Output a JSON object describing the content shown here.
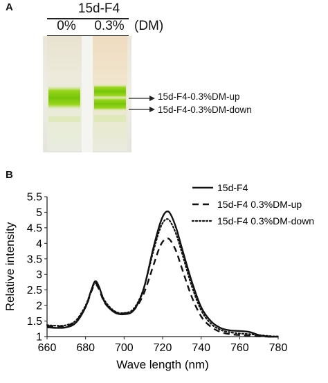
{
  "panel_a": {
    "label": "A",
    "sample_name": "15d-F4",
    "lanes": [
      "0%",
      "0.3%"
    ],
    "unit": "(DM)",
    "band_annotations": [
      "15d-F4-0.3%DM-up",
      "15d-F4-0.3%DM-down"
    ],
    "colors": {
      "band": "#8fd10f",
      "band_core": "#6ec00a",
      "gel": "#ece9dc"
    }
  },
  "panel_b": {
    "label": "B"
  },
  "chart_data": {
    "type": "line",
    "title": "",
    "xlabel": "Wave length (nm)",
    "ylabel": "Relative intensity",
    "xlim": [
      660,
      780
    ],
    "ylim": [
      1,
      5.5
    ],
    "xticks": [
      660,
      680,
      700,
      720,
      740,
      760,
      780
    ],
    "yticks": [
      1,
      1.5,
      2,
      2.5,
      3,
      3.5,
      4,
      4.5,
      5,
      5.5
    ],
    "grid": false,
    "legend_position": "top-right",
    "x": [
      660,
      665,
      670,
      675,
      680,
      683,
      685,
      687,
      690,
      695,
      700,
      705,
      710,
      715,
      718,
      720,
      722,
      724,
      727,
      730,
      735,
      740,
      745,
      750,
      755,
      760,
      765,
      770,
      775,
      780
    ],
    "series": [
      {
        "name": "15d-F4",
        "style": "solid",
        "values": [
          1.3,
          1.28,
          1.3,
          1.45,
          1.95,
          2.5,
          2.78,
          2.6,
          2.1,
          1.78,
          1.72,
          1.85,
          2.5,
          3.8,
          4.5,
          4.85,
          5.02,
          4.95,
          4.5,
          3.85,
          2.8,
          1.95,
          1.5,
          1.28,
          1.2,
          1.18,
          1.15,
          1.05,
          1.0,
          1.0
        ]
      },
      {
        "name": "15d-F4 0.3%DM-up",
        "style": "dashed",
        "values": [
          1.35,
          1.33,
          1.35,
          1.5,
          1.95,
          2.45,
          2.68,
          2.52,
          2.08,
          1.8,
          1.75,
          1.85,
          2.35,
          3.25,
          3.8,
          4.05,
          4.15,
          4.1,
          3.75,
          3.2,
          2.3,
          1.65,
          1.32,
          1.15,
          1.08,
          1.05,
          1.03,
          1.01,
          1.0,
          1.0
        ]
      },
      {
        "name": "15d-F4 0.3%DM-down",
        "style": "dotted",
        "values": [
          1.37,
          1.35,
          1.37,
          1.52,
          2.0,
          2.5,
          2.72,
          2.58,
          2.15,
          1.82,
          1.76,
          1.9,
          2.52,
          3.7,
          4.35,
          4.65,
          4.78,
          4.7,
          4.3,
          3.7,
          2.65,
          1.85,
          1.42,
          1.22,
          1.14,
          1.1,
          1.08,
          1.05,
          1.02,
          1.0
        ]
      }
    ]
  }
}
